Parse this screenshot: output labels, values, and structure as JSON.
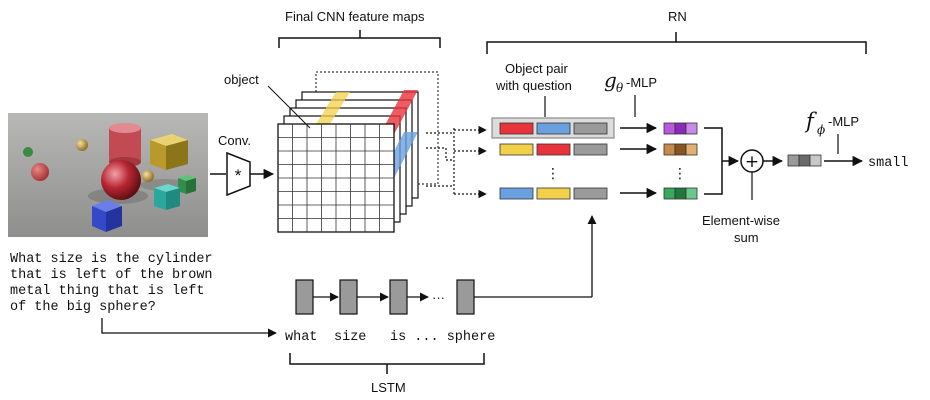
{
  "labels": {
    "final_cnn": "Final CNN feature maps",
    "rn": "RN",
    "object": "object",
    "object_pair": "Object pair",
    "with_question": "with question",
    "conv": "Conv.",
    "conv_symbol": "*",
    "g_symbol": "g",
    "g_subscript": "θ",
    "g_suffix": "-MLP",
    "f_symbol": "f",
    "f_subscript": "ϕ",
    "f_suffix": "-MLP",
    "plus": "+",
    "elementwise_1": "Element-wise",
    "elementwise_2": "sum",
    "output": "small",
    "lstm": "LSTM",
    "vdots": "⋮",
    "hdots": "···"
  },
  "question": {
    "lines": [
      "What size is the cylinder",
      "that is left of the brown",
      "metal thing that is left",
      "of the big sphere?"
    ]
  },
  "lstm_words": {
    "w1": "what",
    "w2": "size",
    "w3": "is ... sphere"
  },
  "colors": {
    "red": "#e8323c",
    "blue": "#6aa0e0",
    "yellow": "#f2d04a",
    "gray": "#9a9a9a",
    "purple": "#9b3fc8",
    "brown": "#b8732e",
    "green": "#2e9a4a",
    "grid_line": "#333333"
  }
}
